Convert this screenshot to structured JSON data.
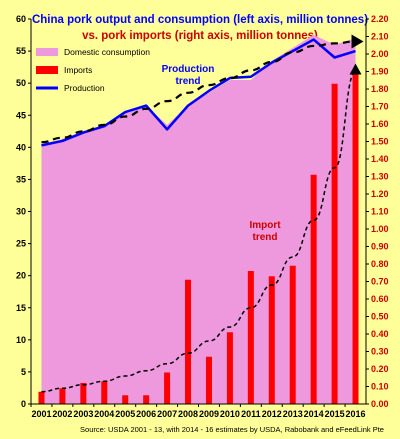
{
  "chart_data": {
    "type": "bar+line+area",
    "title": "China pork output  and consumption  (left axis, million tonnes)",
    "subtitle": "vs. pork imports  (right axis, million tonnes)",
    "source": "Source: USDA 2001 - 13, with 2014 - 16 estimates by USDA, Rabobank and eFeedLink Pte",
    "categories": [
      "2001",
      "2002",
      "2003",
      "2004",
      "2005",
      "2006",
      "2007",
      "2008",
      "2009",
      "2010",
      "2011",
      "2012",
      "2013",
      "2014",
      "2015",
      "2016"
    ],
    "left_axis": {
      "ylim": [
        0,
        60
      ],
      "ticks": [
        "0",
        "5",
        "10",
        "15",
        "20",
        "25",
        "30",
        "35",
        "40",
        "45",
        "50",
        "55",
        "60"
      ]
    },
    "right_axis": {
      "ylim": [
        0,
        2.2
      ],
      "ticks": [
        "0.00",
        "0.10",
        "0.20",
        "0.30",
        "0.40",
        "0.50",
        "0.60",
        "0.70",
        "0.80",
        "0.90",
        "1.00",
        "1.10",
        "1.20",
        "1.30",
        "1.40",
        "1.50",
        "1.60",
        "1.70",
        "1.80",
        "1.90",
        "2.00",
        "2.10",
        "2.20"
      ]
    },
    "series": [
      {
        "name": "Domestic consumption",
        "type": "area",
        "axis": "left",
        "color": "#ee99dd",
        "values": [
          40.5,
          41.3,
          42.5,
          43.5,
          45.5,
          46.5,
          43.5,
          46.5,
          48.5,
          50.5,
          50.5,
          53.5,
          55.5,
          57.5,
          56.0,
          57.0
        ]
      },
      {
        "name": "Imports",
        "type": "bar",
        "axis": "right",
        "color": "#ff0000",
        "values": [
          0.07,
          0.09,
          0.12,
          0.13,
          0.05,
          0.05,
          0.18,
          0.71,
          0.27,
          0.41,
          0.76,
          0.73,
          0.79,
          1.31,
          1.83,
          1.9
        ]
      },
      {
        "name": "Production",
        "type": "line",
        "axis": "left",
        "color": "#0000ff",
        "values": [
          40.3,
          41.0,
          42.3,
          43.3,
          45.5,
          46.5,
          42.8,
          46.5,
          48.8,
          50.8,
          51.0,
          53.2,
          55.0,
          56.8,
          54.0,
          55.0
        ]
      }
    ],
    "trend_lines": [
      {
        "name": "Production trend",
        "color": "#000000",
        "style": "dashed",
        "values": [
          40.8,
          41.5,
          42.5,
          43.5,
          44.8,
          46.0,
          47.2,
          48.5,
          49.7,
          50.8,
          52.0,
          53.3,
          54.8,
          55.8,
          56.2,
          56.5
        ]
      },
      {
        "name": "Import trend",
        "color": "#000000",
        "style": "dashed",
        "values": [
          0.07,
          0.09,
          0.11,
          0.13,
          0.16,
          0.19,
          0.23,
          0.29,
          0.36,
          0.44,
          0.55,
          0.68,
          0.84,
          1.05,
          1.35,
          1.9
        ]
      }
    ],
    "annotations": [
      {
        "text_lines": [
          "Production",
          "trend"
        ],
        "color": "#0000ff"
      },
      {
        "text_lines": [
          "Import",
          "trend"
        ],
        "color": "#cc0000"
      }
    ],
    "legend": {
      "placement": "top-left",
      "items": [
        "Domestic consumption",
        "Imports",
        "Production"
      ]
    },
    "grid": false,
    "colors": {
      "background": "#ffff99",
      "area": "#ee99dd",
      "bars": "#ff0000",
      "line": "#0000ff",
      "title1": "#0000ff",
      "title2": "#cc0000",
      "left_axis_text": "#000000",
      "right_axis_text": "#cc0000"
    }
  }
}
